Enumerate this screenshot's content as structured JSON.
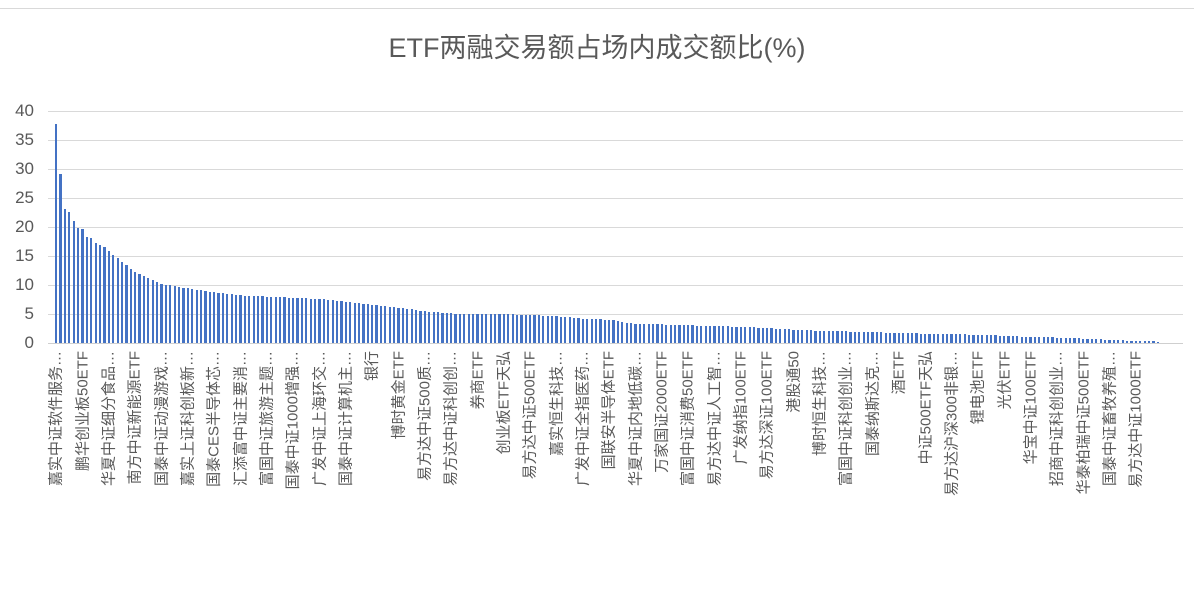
{
  "page": {
    "background": "#FFFFFF"
  },
  "title": "ETF两融交易额占场内成交额比(%)",
  "colors": {
    "bar": "#4472C4",
    "gridline": "#D9D9D9",
    "axis_line": "#CFCFCF",
    "text": "#595959"
  },
  "chart_data": {
    "type": "bar",
    "title": "ETF两融交易额占场内成交额比(%)",
    "xlabel": "",
    "ylabel": "",
    "ylim": [
      0,
      40
    ],
    "yticks": [
      0,
      5,
      10,
      15,
      20,
      25,
      30,
      35,
      40
    ],
    "grid": true,
    "legend": false,
    "bar_color": "#4472C4",
    "n_bars": 252,
    "label_every_n_bars": 6,
    "categories": [
      "嘉实中证软件服务…",
      "鹏华创业板50ETF",
      "华夏中证细分食品…",
      "南方中证新能源ETF",
      "国泰中证动漫游戏…",
      "嘉实上证科创板新…",
      "国泰CES半导体芯…",
      "汇添富中证主要消…",
      "富国中证旅游主题…",
      "国泰中证1000增强…",
      "广发中证上海环交…",
      "国泰中证计算机主…",
      "银行",
      "博时黄金ETF",
      "易方达中证500质…",
      "易方达中证科创创…",
      "券商ETF",
      "创业板ETF天弘",
      "易方达中证500ETF",
      "嘉实恒生科技…",
      "广发中证全指医药…",
      "国联安半导体ETF",
      "华夏中证内地低碳…",
      "万家国证2000ETF",
      "富国中证消费50ETF",
      "易方达中证人工智…",
      "广发纳指100ETF",
      "易方达深证100ETF",
      "港股通50",
      "博时恒生科技…",
      "富国中证科创创业…",
      "国泰纳斯达克…",
      "酒ETF",
      "中证500ETF天弘",
      "易方达沪深300非银…",
      "锂电池ETF",
      "光伏ETF",
      "华宝中证100ETF",
      "招商中证科创创业…",
      "华泰柏瑞中证500ETF",
      "国泰中证畜牧养殖…",
      "易方达中证1000ETF"
    ],
    "category_values": [
      37.8,
      19.6,
      15.8,
      12.2,
      10.2,
      9.4,
      8.75,
      8.2,
      8.0,
      7.8,
      7.6,
      7.1,
      6.6,
      6.1,
      5.5,
      5.1,
      5.0,
      4.95,
      4.85,
      4.6,
      4.2,
      4.0,
      3.3,
      3.2,
      3.05,
      2.9,
      2.8,
      2.6,
      2.3,
      2.1,
      2.0,
      1.85,
      1.75,
      1.6,
      1.55,
      1.4,
      1.25,
      1.05,
      0.95,
      0.75,
      0.55,
      0.35
    ],
    "leading_bar_values": [
      37.8,
      29.2,
      23.1,
      22.6,
      21.0,
      19.9,
      19.6,
      18.3,
      18.1,
      17.3,
      16.9,
      16.5
    ],
    "trailing_bar_value": 0.25
  }
}
